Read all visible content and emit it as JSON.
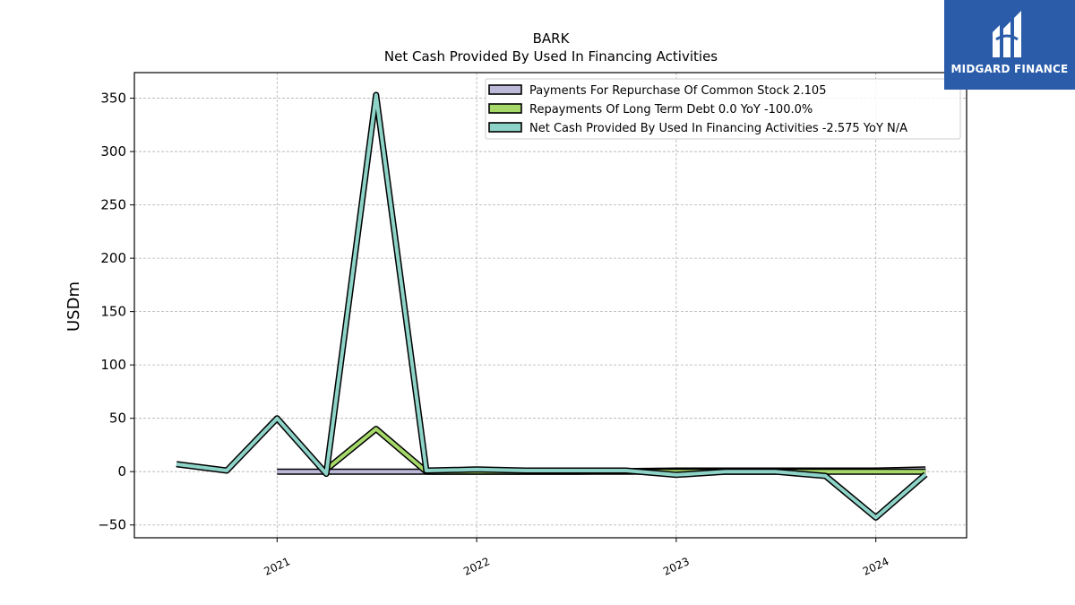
{
  "chart_data": {
    "type": "line",
    "title": "BARK",
    "subtitle": "Net Cash Provided By Used In Financing Activities",
    "ylabel": "USDm",
    "xlabel": "",
    "ylim": [
      -62,
      374
    ],
    "xlim": [
      "2020-04-15",
      "2024-06-15"
    ],
    "yticks": [
      -50,
      0,
      50,
      100,
      150,
      200,
      250,
      300,
      350
    ],
    "yticklabels": [
      "−50",
      "0",
      "50",
      "100",
      "150",
      "200",
      "250",
      "300",
      "350"
    ],
    "xticks": [
      {
        "date": "2021-01-01",
        "label": "2021"
      },
      {
        "date": "2022-01-01",
        "label": "2022"
      },
      {
        "date": "2023-01-01",
        "label": "2023"
      },
      {
        "date": "2024-01-01",
        "label": "2024"
      }
    ],
    "grid": true,
    "legend_position": "top-right",
    "series": [
      {
        "name": "Payments For Repurchase Of Common Stock",
        "legend": "Payments For Repurchase Of Common Stock  2.105",
        "color": "#bcb8d8",
        "points": [
          {
            "x": "2021-01-01",
            "y": 0.0
          },
          {
            "x": "2021-04-01",
            "y": 0.0
          },
          {
            "x": "2021-07-01",
            "y": 0.0
          },
          {
            "x": "2021-10-01",
            "y": 0.0
          },
          {
            "x": "2022-01-01",
            "y": 0.0
          },
          {
            "x": "2022-04-01",
            "y": 0.0
          },
          {
            "x": "2022-07-01",
            "y": 0.0
          },
          {
            "x": "2022-10-01",
            "y": 0.5
          },
          {
            "x": "2023-01-01",
            "y": 1.0
          },
          {
            "x": "2023-04-01",
            "y": 1.0
          },
          {
            "x": "2023-07-01",
            "y": 1.0
          },
          {
            "x": "2023-10-01",
            "y": 1.0
          },
          {
            "x": "2024-01-01",
            "y": 1.0
          },
          {
            "x": "2024-04-01",
            "y": 2.1
          }
        ]
      },
      {
        "name": "Repayments Of Long Term Debt",
        "legend": "Repayments Of Long Term Debt  0.0 YoY -100.0%",
        "color": "#a6d96a",
        "points": [
          {
            "x": "2021-04-01",
            "y": 2.0
          },
          {
            "x": "2021-07-01",
            "y": 40.0
          },
          {
            "x": "2021-10-01",
            "y": 0.0
          },
          {
            "x": "2022-01-01",
            "y": 0.0
          },
          {
            "x": "2022-04-01",
            "y": 0.0
          },
          {
            "x": "2022-07-01",
            "y": 0.0
          },
          {
            "x": "2022-10-01",
            "y": 0.0
          },
          {
            "x": "2023-01-01",
            "y": 0.0
          },
          {
            "x": "2023-04-01",
            "y": 0.0
          },
          {
            "x": "2023-07-01",
            "y": 0.0
          },
          {
            "x": "2023-10-01",
            "y": 0.0
          },
          {
            "x": "2024-01-01",
            "y": 0.0
          },
          {
            "x": "2024-04-01",
            "y": 0.0
          }
        ]
      },
      {
        "name": "Net Cash Provided By Used In Financing Activities",
        "legend": "Net Cash Provided By Used In Financing Activities  -2.575 YoY N/A",
        "color": "#8dd3c7",
        "points": [
          {
            "x": "2020-07-01",
            "y": 7.0
          },
          {
            "x": "2020-10-01",
            "y": 1.0
          },
          {
            "x": "2021-01-01",
            "y": 50.0
          },
          {
            "x": "2021-04-01",
            "y": -2.0
          },
          {
            "x": "2021-07-01",
            "y": 353.0
          },
          {
            "x": "2021-10-01",
            "y": 1.0
          },
          {
            "x": "2022-01-01",
            "y": 2.0
          },
          {
            "x": "2022-04-01",
            "y": 1.0
          },
          {
            "x": "2022-07-01",
            "y": 1.0
          },
          {
            "x": "2022-10-01",
            "y": 1.0
          },
          {
            "x": "2023-01-01",
            "y": -3.0
          },
          {
            "x": "2023-04-01",
            "y": 0.0
          },
          {
            "x": "2023-07-01",
            "y": 0.0
          },
          {
            "x": "2023-10-01",
            "y": -4.0
          },
          {
            "x": "2024-01-01",
            "y": -43.0
          },
          {
            "x": "2024-04-01",
            "y": -2.6
          }
        ]
      }
    ]
  },
  "logo": {
    "text": "MIDGARD FINANCE",
    "color": "#2a5caa"
  }
}
